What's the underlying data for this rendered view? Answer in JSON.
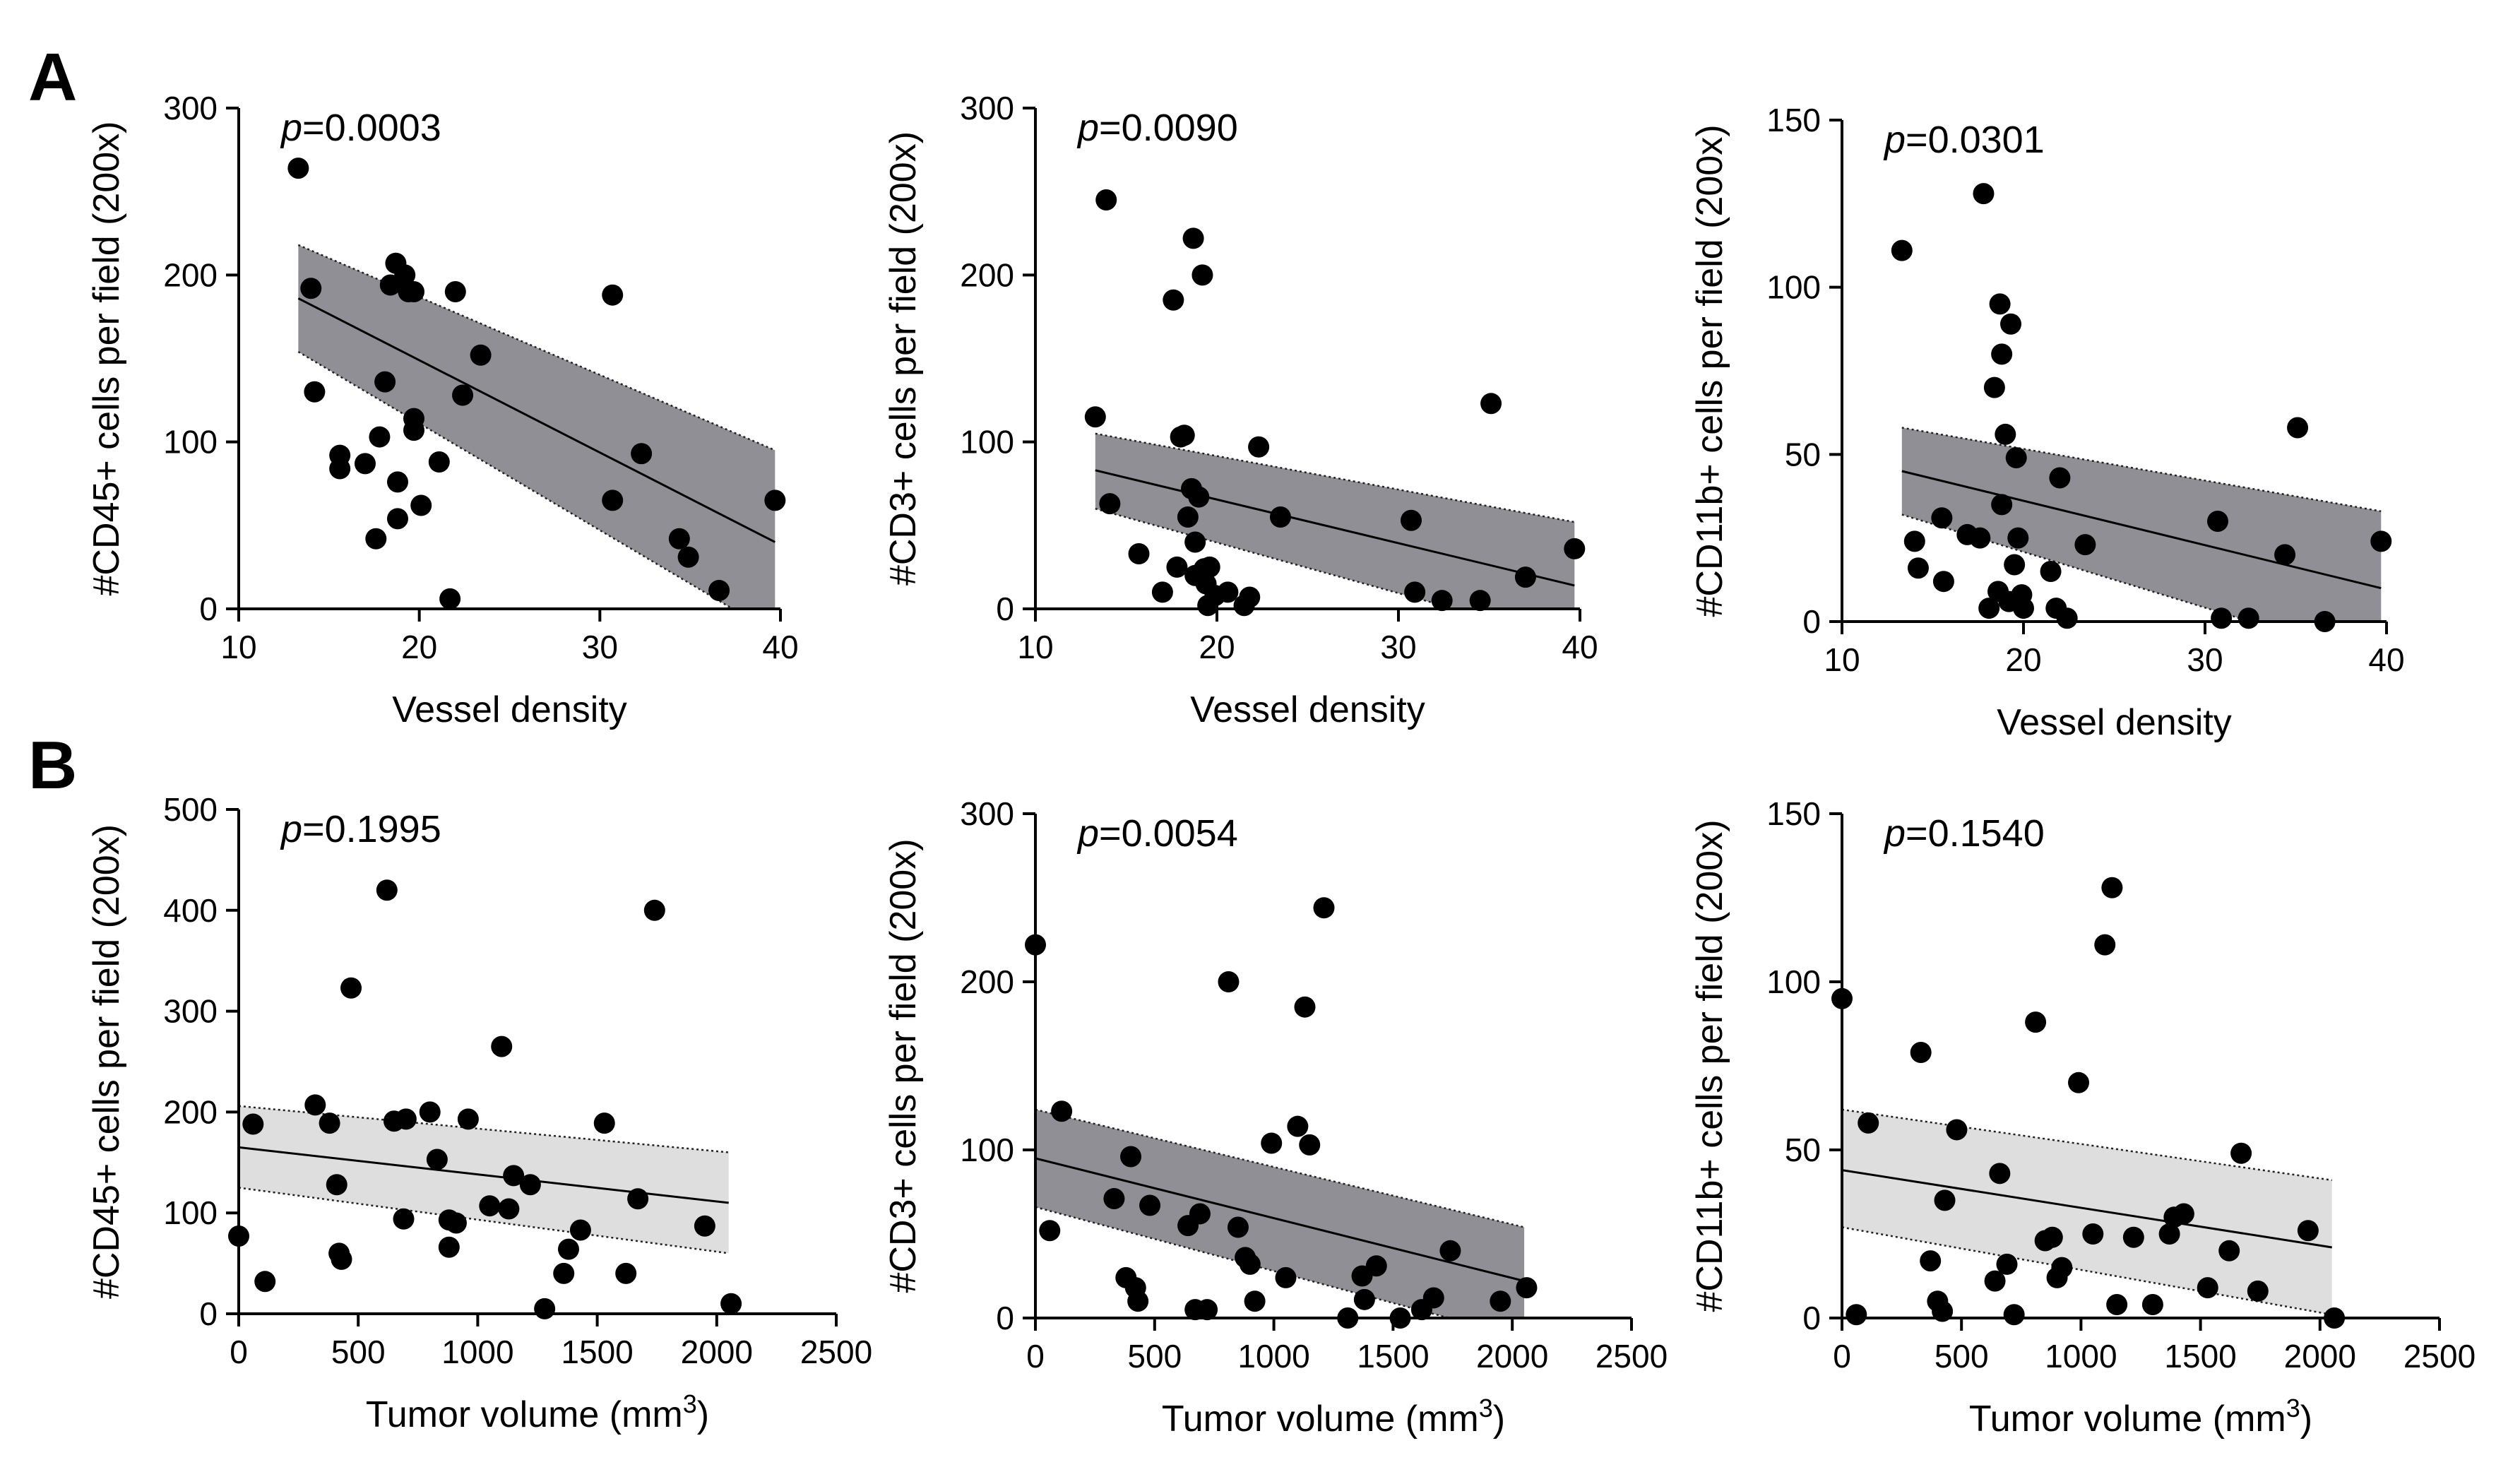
{
  "figure": {
    "panels": [
      {
        "letter": "A"
      },
      {
        "letter": "B"
      }
    ]
  },
  "chart_data": [
    {
      "type": "scatter",
      "row": "A",
      "col": 0,
      "ylabel": "#CD45+ cells per field  (200x)",
      "xlabel": "Vessel density",
      "p_label": "p",
      "p_value": "=0.0003",
      "xlim": [
        10,
        40
      ],
      "ylim": [
        0,
        300
      ],
      "xticks": [
        10,
        20,
        30,
        40
      ],
      "yticks": [
        0,
        100,
        200,
        300
      ],
      "band_color": "#8f8f95",
      "regression": {
        "x": [
          13.3,
          39.7
        ],
        "y": [
          186,
          40
        ],
        "lower": [
          154,
          -15
        ],
        "upper": [
          218,
          95
        ]
      },
      "points": [
        [
          13.3,
          264
        ],
        [
          14,
          192
        ],
        [
          14.2,
          130
        ],
        [
          15.6,
          92
        ],
        [
          15.6,
          84
        ],
        [
          17.0,
          87
        ],
        [
          17.6,
          42
        ],
        [
          17.8,
          103
        ],
        [
          18.1,
          136
        ],
        [
          18.4,
          194
        ],
        [
          18.7,
          207
        ],
        [
          18.8,
          76
        ],
        [
          18.8,
          54
        ],
        [
          19.2,
          200
        ],
        [
          19.4,
          190
        ],
        [
          19.7,
          190
        ],
        [
          19.7,
          107
        ],
        [
          19.7,
          114
        ],
        [
          20.1,
          62
        ],
        [
          21.1,
          88
        ],
        [
          21.7,
          6
        ],
        [
          22,
          190
        ],
        [
          22.4,
          128
        ],
        [
          23.4,
          152
        ],
        [
          30.7,
          188
        ],
        [
          30.7,
          65
        ],
        [
          32.3,
          93
        ],
        [
          34.4,
          42
        ],
        [
          34.9,
          31
        ],
        [
          36.6,
          11
        ],
        [
          39.7,
          65
        ]
      ]
    },
    {
      "type": "scatter",
      "row": "A",
      "col": 1,
      "ylabel": "#CD3+ cells per field  (200x)",
      "xlabel": "Vessel density",
      "p_label": "p",
      "p_value": "=0.0090",
      "xlim": [
        10,
        40
      ],
      "ylim": [
        0,
        300
      ],
      "xticks": [
        10,
        20,
        30,
        40
      ],
      "yticks": [
        0,
        100,
        200,
        300
      ],
      "band_color": "#8f8f95",
      "regression": {
        "x": [
          13.3,
          39.7
        ],
        "y": [
          83,
          14
        ],
        "lower": [
          60,
          -20
        ],
        "upper": [
          105,
          52
        ]
      },
      "points": [
        [
          13.3,
          115
        ],
        [
          13.9,
          245
        ],
        [
          14.1,
          63
        ],
        [
          15.7,
          33
        ],
        [
          17.0,
          10
        ],
        [
          17.6,
          185
        ],
        [
          17.8,
          25
        ],
        [
          18.0,
          103
        ],
        [
          18.2,
          104
        ],
        [
          18.4,
          55
        ],
        [
          18.6,
          72
        ],
        [
          18.7,
          222
        ],
        [
          18.8,
          20
        ],
        [
          18.8,
          40
        ],
        [
          19.0,
          67
        ],
        [
          19.2,
          200
        ],
        [
          19.3,
          24
        ],
        [
          19.4,
          15
        ],
        [
          19.5,
          2
        ],
        [
          19.6,
          25
        ],
        [
          19.9,
          8
        ],
        [
          20.6,
          10
        ],
        [
          21.5,
          2
        ],
        [
          21.8,
          7
        ],
        [
          22.3,
          97
        ],
        [
          23.5,
          55
        ],
        [
          30.7,
          53
        ],
        [
          30.9,
          10
        ],
        [
          32.4,
          5
        ],
        [
          34.5,
          5
        ],
        [
          35.1,
          123
        ],
        [
          37.0,
          19
        ],
        [
          39.7,
          36
        ]
      ]
    },
    {
      "type": "scatter",
      "row": "A",
      "col": 2,
      "ylabel": "#CD11b+ cells per field  (200x)",
      "xlabel": "Vessel density",
      "p_label": "p",
      "p_value": "=0.0301",
      "xlim": [
        10,
        40
      ],
      "ylim": [
        0,
        150
      ],
      "xticks": [
        10,
        20,
        30,
        40
      ],
      "yticks": [
        0,
        50,
        100,
        150
      ],
      "band_color": "#8f8f95",
      "regression": {
        "x": [
          13.3,
          39.7
        ],
        "y": [
          45,
          10
        ],
        "lower": [
          32,
          -12
        ],
        "upper": [
          58,
          33
        ]
      },
      "points": [
        [
          13.3,
          111
        ],
        [
          14,
          24
        ],
        [
          14.2,
          16
        ],
        [
          15.5,
          31
        ],
        [
          15.6,
          12
        ],
        [
          16.9,
          26
        ],
        [
          17.6,
          25
        ],
        [
          17.8,
          128
        ],
        [
          18.1,
          4
        ],
        [
          18.4,
          70
        ],
        [
          18.6,
          9
        ],
        [
          18.7,
          95
        ],
        [
          18.8,
          80
        ],
        [
          18.8,
          35
        ],
        [
          19.0,
          56
        ],
        [
          19.2,
          6
        ],
        [
          19.3,
          89
        ],
        [
          19.5,
          17
        ],
        [
          19.6,
          49
        ],
        [
          19.7,
          25
        ],
        [
          19.9,
          8
        ],
        [
          20.0,
          4
        ],
        [
          21.5,
          15
        ],
        [
          21.8,
          4
        ],
        [
          22.0,
          43
        ],
        [
          22.4,
          1
        ],
        [
          23.4,
          23
        ],
        [
          30.7,
          30
        ],
        [
          30.9,
          1
        ],
        [
          32.4,
          1
        ],
        [
          34.4,
          20
        ],
        [
          35.1,
          58
        ],
        [
          36.6,
          0
        ],
        [
          39.7,
          24
        ]
      ]
    },
    {
      "type": "scatter",
      "row": "B",
      "col": 0,
      "ylabel": "#CD45+ cells per field  (200x)",
      "xlabel": "Tumor volume (mm",
      "xlabel_sup": "3",
      "xlabel_end": ")",
      "p_label": "p",
      "p_value": "=0.1995",
      "xlim": [
        0,
        2500
      ],
      "ylim": [
        0,
        500
      ],
      "xticks": [
        0,
        500,
        1000,
        1500,
        2000,
        2500
      ],
      "yticks": [
        0,
        100,
        200,
        300,
        400,
        500
      ],
      "band_color": "#dedede",
      "regression": {
        "x": [
          0,
          2050
        ],
        "y": [
          165,
          110
        ],
        "lower": [
          125,
          60
        ],
        "upper": [
          206,
          160
        ]
      },
      "points": [
        [
          0,
          77
        ],
        [
          60,
          188
        ],
        [
          110,
          32
        ],
        [
          320,
          207
        ],
        [
          380,
          189
        ],
        [
          410,
          128
        ],
        [
          420,
          60
        ],
        [
          430,
          54
        ],
        [
          470,
          323
        ],
        [
          620,
          420
        ],
        [
          650,
          191
        ],
        [
          690,
          94
        ],
        [
          700,
          193
        ],
        [
          800,
          200
        ],
        [
          830,
          153
        ],
        [
          880,
          93
        ],
        [
          880,
          66
        ],
        [
          910,
          90
        ],
        [
          960,
          193
        ],
        [
          1050,
          107
        ],
        [
          1100,
          265
        ],
        [
          1130,
          104
        ],
        [
          1150,
          137
        ],
        [
          1220,
          128
        ],
        [
          1280,
          5
        ],
        [
          1360,
          40
        ],
        [
          1380,
          64
        ],
        [
          1430,
          83
        ],
        [
          1530,
          189
        ],
        [
          1620,
          40
        ],
        [
          1670,
          114
        ],
        [
          1740,
          400
        ],
        [
          1950,
          87
        ],
        [
          2060,
          10
        ]
      ]
    },
    {
      "type": "scatter",
      "row": "B",
      "col": 1,
      "ylabel": "#CD3+ cells per field  (200x)",
      "xlabel": "Tumor volume (mm",
      "xlabel_sup": "3",
      "xlabel_end": ")",
      "p_label": "p",
      "p_value": "=0.0054",
      "xlim": [
        0,
        2500
      ],
      "ylim": [
        0,
        300
      ],
      "xticks": [
        0,
        500,
        1000,
        1500,
        2000,
        2500
      ],
      "yticks": [
        0,
        100,
        200,
        300
      ],
      "band_color": "#8f8f95",
      "regression": {
        "x": [
          0,
          2050
        ],
        "y": [
          95,
          22
        ],
        "lower": [
          66,
          -12
        ],
        "upper": [
          124,
          54
        ]
      },
      "points": [
        [
          0,
          222
        ],
        [
          60,
          52
        ],
        [
          110,
          123
        ],
        [
          330,
          71
        ],
        [
          380,
          24
        ],
        [
          400,
          96
        ],
        [
          420,
          18
        ],
        [
          430,
          10
        ],
        [
          480,
          67
        ],
        [
          640,
          55
        ],
        [
          670,
          5
        ],
        [
          690,
          62
        ],
        [
          720,
          5
        ],
        [
          810,
          200
        ],
        [
          850,
          54
        ],
        [
          880,
          36
        ],
        [
          900,
          32
        ],
        [
          920,
          10
        ],
        [
          990,
          104
        ],
        [
          1050,
          24
        ],
        [
          1100,
          114
        ],
        [
          1130,
          185
        ],
        [
          1150,
          103
        ],
        [
          1210,
          244
        ],
        [
          1310,
          0
        ],
        [
          1370,
          25
        ],
        [
          1380,
          11
        ],
        [
          1430,
          31
        ],
        [
          1530,
          0
        ],
        [
          1620,
          5
        ],
        [
          1670,
          12
        ],
        [
          1740,
          40
        ],
        [
          1950,
          10
        ],
        [
          2060,
          18
        ]
      ]
    },
    {
      "type": "scatter",
      "row": "B",
      "col": 2,
      "ylabel": "#CD11b+ cells per field  (200x)",
      "xlabel": "Tumor volume (mm",
      "xlabel_sup": "3",
      "xlabel_end": ")",
      "p_label": "p",
      "p_value": "=0.1540",
      "xlim": [
        0,
        2500
      ],
      "ylim": [
        0,
        150
      ],
      "xticks": [
        0,
        500,
        1000,
        1500,
        2000,
        2500
      ],
      "yticks": [
        0,
        50,
        100,
        150
      ],
      "band_color": "#dedede",
      "regression": {
        "x": [
          0,
          2050
        ],
        "y": [
          44,
          21
        ],
        "lower": [
          27,
          1
        ],
        "upper": [
          62,
          41
        ]
      },
      "points": [
        [
          0,
          95
        ],
        [
          60,
          1
        ],
        [
          110,
          58
        ],
        [
          330,
          79
        ],
        [
          370,
          17
        ],
        [
          400,
          5
        ],
        [
          420,
          2
        ],
        [
          430,
          35
        ],
        [
          480,
          56
        ],
        [
          640,
          11
        ],
        [
          660,
          43
        ],
        [
          690,
          16
        ],
        [
          720,
          1
        ],
        [
          810,
          88
        ],
        [
          850,
          23
        ],
        [
          880,
          24
        ],
        [
          900,
          12
        ],
        [
          920,
          15
        ],
        [
          990,
          70
        ],
        [
          1050,
          25
        ],
        [
          1100,
          111
        ],
        [
          1130,
          128
        ],
        [
          1150,
          4
        ],
        [
          1220,
          24
        ],
        [
          1300,
          4
        ],
        [
          1370,
          25
        ],
        [
          1390,
          30
        ],
        [
          1430,
          31
        ],
        [
          1530,
          9
        ],
        [
          1620,
          20
        ],
        [
          1670,
          49
        ],
        [
          1740,
          8
        ],
        [
          1950,
          26
        ],
        [
          2060,
          0
        ]
      ]
    }
  ]
}
